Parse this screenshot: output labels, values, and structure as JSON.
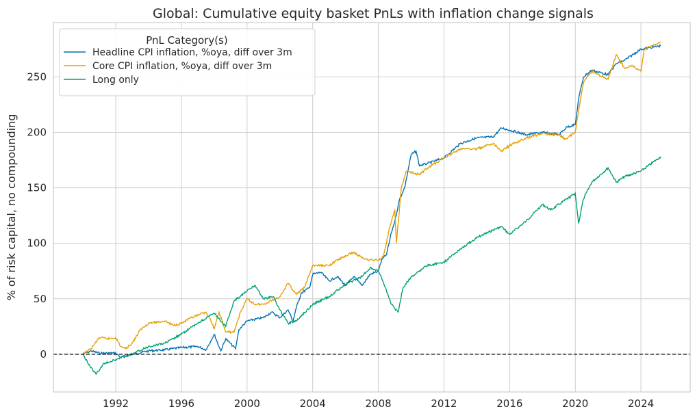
{
  "chart_data": {
    "type": "line",
    "title": "Global: Cumulative equity basket PnLs with inflation change signals",
    "xlabel": "",
    "ylabel": "% of risk capital, no compounding",
    "xlim": [
      1988.2,
      2027.0
    ],
    "ylim": [
      -34,
      299
    ],
    "xticks": [
      1992,
      1996,
      2000,
      2004,
      2008,
      2012,
      2016,
      2020,
      2024
    ],
    "yticks": [
      0,
      50,
      100,
      150,
      200,
      250
    ],
    "grid": true,
    "zero_line": {
      "value": 0,
      "style": "dashed",
      "color": "#000000"
    },
    "legend": {
      "title": "PnL Category(s)",
      "placement": "top-left"
    },
    "series": [
      {
        "name": "Headline CPI inflation, %oya, diff over 3m",
        "color": "#0072b2",
        "x": [
          1990,
          1990.5,
          1991,
          1992,
          1992.3,
          1993,
          1994,
          1995,
          1996,
          1997,
          1997.5,
          1998,
          1998.4,
          1998.7,
          1999.3,
          1999.5,
          2000,
          2001,
          2001.5,
          2002,
          2002.5,
          2002.8,
          2003,
          2003.3,
          2003.8,
          2004,
          2004.5,
          2005,
          2005.5,
          2006,
          2006.5,
          2007,
          2007.5,
          2008,
          2008.2,
          2008.5,
          2008.8,
          2009,
          2009.3,
          2009.6,
          2010,
          2010.3,
          2010.5,
          2011,
          2012,
          2013,
          2014,
          2015,
          2015.5,
          2016,
          2017,
          2018,
          2019,
          2019.5,
          2020,
          2020.2,
          2020.5,
          2021,
          2022,
          2022.5,
          2023,
          2024,
          2025.2
        ],
        "y": [
          0,
          3,
          1,
          1,
          -3,
          0,
          3,
          4,
          6,
          7,
          4,
          18,
          3,
          14,
          5,
          22,
          30,
          33,
          38,
          33,
          40,
          30,
          42,
          55,
          60,
          72,
          74,
          66,
          70,
          62,
          70,
          62,
          72,
          75,
          85,
          90,
          110,
          120,
          140,
          150,
          180,
          183,
          170,
          172,
          177,
          190,
          195,
          196,
          204,
          202,
          198,
          200,
          198,
          205,
          207,
          230,
          250,
          256,
          252,
          262,
          265,
          275,
          278
        ]
      },
      {
        "name": "Core CPI inflation, %oya, diff over 3m",
        "color": "#e69f00",
        "x": [
          1990,
          1990.5,
          1991,
          1991.5,
          1992,
          1992.3,
          1992.6,
          1993,
          1993.5,
          1994,
          1995,
          1995.5,
          1996,
          1996.5,
          1997,
          1997.5,
          1997.8,
          1998,
          1998.3,
          1998.7,
          1999.2,
          1999.6,
          2000,
          2000.5,
          2001,
          2002,
          2002.5,
          2003,
          2003.5,
          2004,
          2005,
          2005.5,
          2006.5,
          2007,
          2007.5,
          2008,
          2008.3,
          2008.7,
          2009,
          2009.1,
          2009.4,
          2009.7,
          2010.5,
          2011,
          2012,
          2013,
          2014,
          2015,
          2015.5,
          2016,
          2017,
          2018,
          2019,
          2019.4,
          2020,
          2020.2,
          2020.5,
          2021,
          2022,
          2022.5,
          2023,
          2023.5,
          2024,
          2024.2,
          2025.2
        ],
        "y": [
          0,
          5,
          15,
          14,
          15,
          7,
          5,
          10,
          22,
          28,
          30,
          26,
          28,
          32,
          35,
          38,
          30,
          23,
          38,
          20,
          20,
          38,
          50,
          45,
          45,
          52,
          64,
          54,
          60,
          80,
          80,
          85,
          92,
          87,
          85,
          85,
          88,
          115,
          130,
          100,
          150,
          165,
          162,
          168,
          177,
          185,
          185,
          190,
          183,
          188,
          195,
          199,
          198,
          194,
          200,
          220,
          245,
          255,
          248,
          270,
          258,
          260,
          255,
          275,
          281
        ]
      },
      {
        "name": "Long only",
        "color": "#009e73",
        "x": [
          1990,
          1990.3,
          1990.8,
          1991.3,
          1992,
          1992.3,
          1993,
          1994,
          1995,
          1996,
          1997,
          1998,
          1998.7,
          1999.2,
          2000,
          2000.5,
          2001,
          2001.6,
          2002,
          2002.5,
          2003,
          2004,
          2005,
          2006,
          2007,
          2007.5,
          2008,
          2008.3,
          2008.8,
          2009.2,
          2009.5,
          2010,
          2011,
          2012,
          2013,
          2014,
          2015,
          2015.5,
          2016,
          2017,
          2018,
          2018.5,
          2019,
          2020,
          2020.2,
          2020.5,
          2021,
          2022,
          2022.5,
          2023,
          2024,
          2025.2
        ],
        "y": [
          0,
          -8,
          -18,
          -8,
          -5,
          -3,
          0,
          7,
          10,
          18,
          28,
          37,
          25,
          48,
          57,
          62,
          50,
          52,
          40,
          28,
          30,
          45,
          52,
          63,
          70,
          78,
          75,
          65,
          45,
          38,
          60,
          70,
          80,
          83,
          95,
          105,
          112,
          115,
          108,
          120,
          135,
          130,
          135,
          145,
          118,
          140,
          155,
          168,
          155,
          160,
          165,
          178
        ]
      }
    ]
  }
}
